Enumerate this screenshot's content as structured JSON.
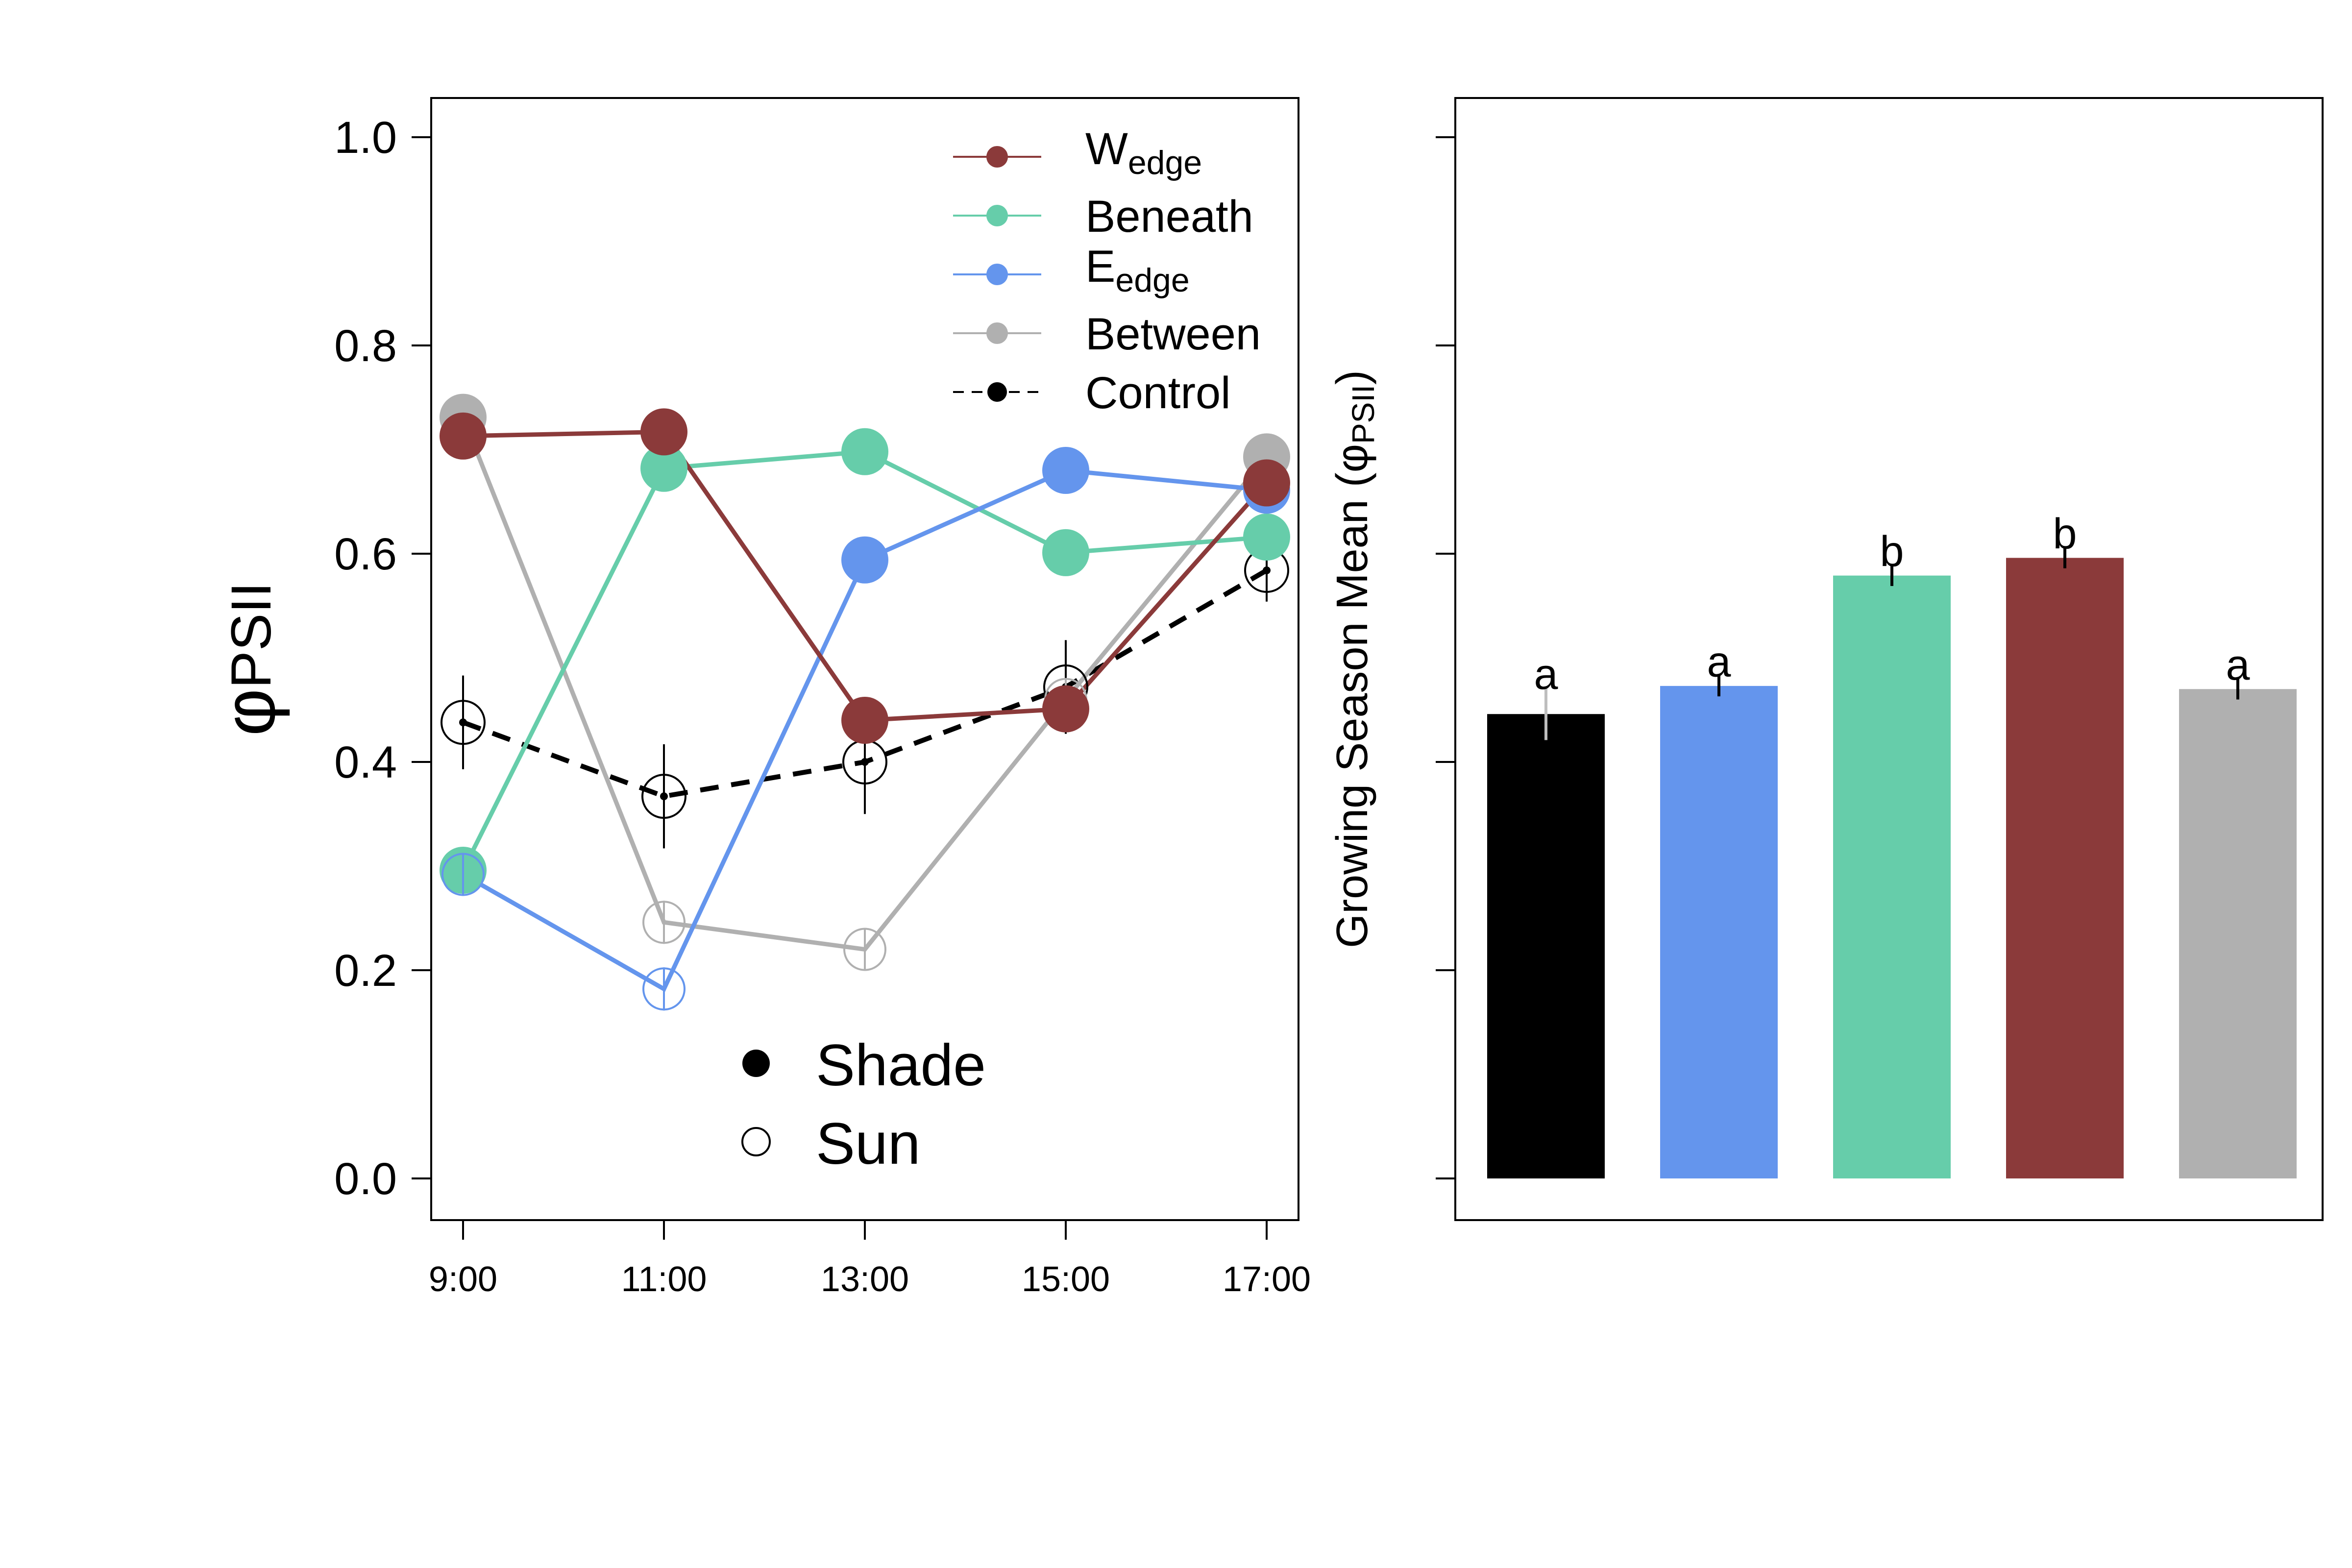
{
  "chart_data": [
    {
      "type": "line",
      "ylabel": {
        "main": "φ",
        "sub": "PSII"
      },
      "x": [
        "9:00",
        "11:00",
        "13:00",
        "15:00",
        "17:00"
      ],
      "ylim": [
        0,
        1.0
      ],
      "yticks": [
        0.0,
        0.2,
        0.4,
        0.6,
        0.8,
        1.0
      ],
      "ytick_labels": [
        "0.0",
        "0.2",
        "0.4",
        "0.6",
        "0.8",
        "1.0"
      ],
      "series": [
        {
          "key": "wedge",
          "name": "W",
          "name_sub": "edge",
          "color": "#8B3A3A",
          "shade": [
            0.713,
            0.717,
            0.44,
            0.451,
            0.668
          ],
          "sun": [
            0.712,
            null,
            null,
            0.451,
            0.668
          ]
        },
        {
          "key": "beneath",
          "name": "Beneath",
          "color": "#66CDAA",
          "shade": [
            0.296,
            0.682,
            0.698,
            0.601,
            0.616
          ],
          "sun": [
            0.296,
            null,
            null,
            null,
            0.616
          ]
        },
        {
          "key": "eedge",
          "name": "E",
          "name_sub": "edge",
          "color": "#6495ED",
          "shade": [
            0.292,
            0.182,
            0.594,
            0.68,
            0.661
          ],
          "sun": [
            0.292,
            0.182,
            null,
            null,
            0.661
          ]
        },
        {
          "key": "between",
          "name": "Between",
          "color": "#B0B0B0",
          "shade": [
            0.731,
            0.246,
            0.22,
            0.46,
            0.693
          ],
          "sun": [
            null,
            0.246,
            0.22,
            0.46,
            null
          ]
        },
        {
          "key": "control",
          "name": "Control",
          "color": "#000000",
          "dashed": true,
          "sun": [
            0.438,
            0.367,
            0.4,
            0.472,
            0.584
          ],
          "err": [
            0.045,
            0.05,
            0.05,
            0.045,
            0.03
          ]
        }
      ],
      "marker_legend": {
        "shade": "Shade",
        "sun": "Sun"
      }
    },
    {
      "type": "bar",
      "ylabel": {
        "main": "Growing Season Mean (",
        "greek": "φ",
        "sub": "PSII",
        "close": ")"
      },
      "ylim": [
        0,
        1.0
      ],
      "bars": [
        {
          "key": "control",
          "value": 0.446,
          "err": 0.025,
          "letter": "a",
          "color": "#000000",
          "err_color": "#BEBEBE"
        },
        {
          "key": "eedge",
          "value": 0.473,
          "err": 0.01,
          "letter": "a",
          "color": "#6495ED",
          "err_color": "#000000"
        },
        {
          "key": "beneath",
          "value": 0.579,
          "err": 0.01,
          "letter": "b",
          "color": "#66CDAA",
          "err_color": "#000000"
        },
        {
          "key": "wedge",
          "value": 0.596,
          "err": 0.01,
          "letter": "b",
          "color": "#8B3A3A",
          "err_color": "#000000"
        },
        {
          "key": "between",
          "value": 0.47,
          "err": 0.01,
          "letter": "a",
          "color": "#B0B0B0",
          "err_color": "#000000"
        }
      ]
    }
  ]
}
